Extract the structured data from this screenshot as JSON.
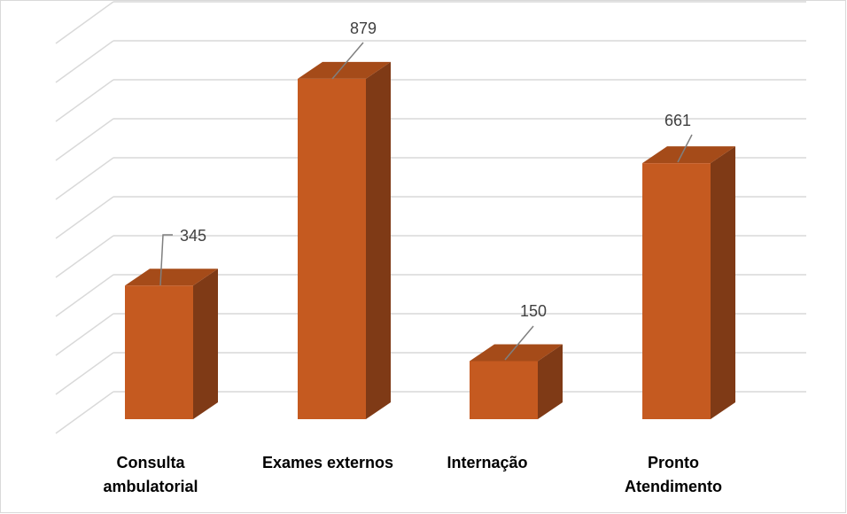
{
  "chart_data": {
    "type": "bar",
    "style": "3d-column",
    "categories": [
      [
        "Consulta",
        "ambulatorial"
      ],
      [
        "Exames externos"
      ],
      [
        "Internação"
      ],
      [
        "Pronto",
        "Atendimento"
      ]
    ],
    "values": [
      345,
      879,
      150,
      661
    ],
    "data_labels": [
      "345",
      "879",
      "150",
      "661"
    ],
    "ylim": [
      0,
      1000
    ],
    "grid": true,
    "legend": "none",
    "colors": {
      "front": "#C55A20",
      "top": "#A54B19",
      "side": "#7F3A16",
      "grid": "#d9d9d9",
      "leader": "#7f7f7f"
    }
  }
}
